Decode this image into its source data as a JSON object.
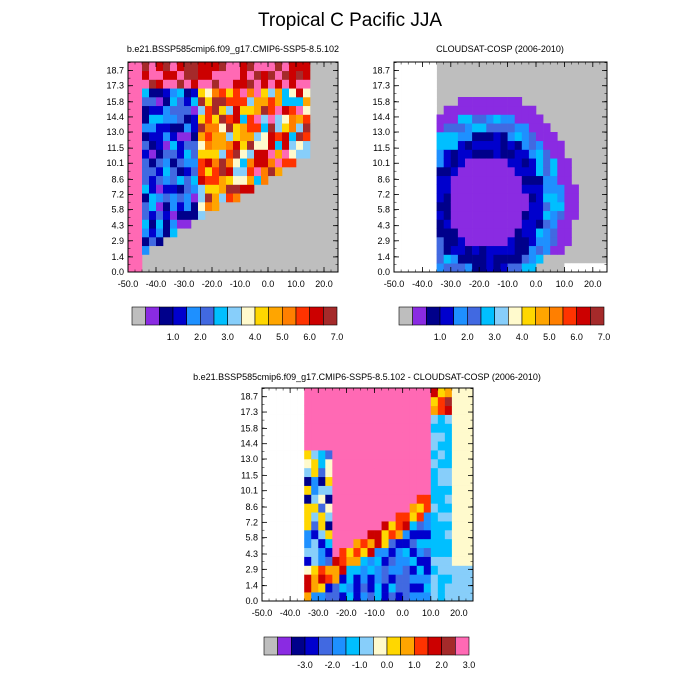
{
  "figure": {
    "title": "Tropical C Pacific JJA"
  },
  "colors": {
    "missing": "#bebebe",
    "palette_a": [
      "#8a2be2",
      "#00008b",
      "#0000cd",
      "#1e90ff",
      "#4169e1",
      "#00bfff",
      "#87cefa",
      "#fffacd",
      "#ffd700",
      "#ffa500",
      "#ff7f00",
      "#ff3300",
      "#cc0000",
      "#a52a2a",
      "#ff69b4"
    ],
    "palette_diff": [
      "#bebebe",
      "#8a2be2",
      "#00008b",
      "#0000cd",
      "#4169e1",
      "#1e90ff",
      "#00bfff",
      "#87cefa",
      "#fffacd",
      "#ffd700",
      "#ffa500",
      "#ff3300",
      "#cc0000",
      "#a52a2a",
      "#ff69b4"
    ]
  },
  "chart_data": [
    {
      "type": "heatmap",
      "title": "b.e21.BSSP585cmip6.f09_g17.CMIP6-SSP5-8.5.102",
      "xlabel": "",
      "ylabel": "",
      "xlim": [
        -50,
        25
      ],
      "ylim": [
        0,
        19.5
      ],
      "x_ticks": [
        "-50.0",
        "-40.0",
        "-30.0",
        "-20.0",
        "-10.0",
        "0.0",
        "10.0",
        "20.0"
      ],
      "y_ticks": [
        "0.0",
        "1.4",
        "2.9",
        "4.3",
        "5.8",
        "7.2",
        "8.6",
        "10.1",
        "11.5",
        "13.0",
        "14.4",
        "15.8",
        "17.3",
        "18.7"
      ],
      "colorbar_labels": [
        "1.0",
        "2.0",
        "3.0",
        "4.0",
        "5.0",
        "6.0",
        "7.0"
      ],
      "colorbar_levels": [
        0.5,
        1,
        1.5,
        2,
        2.5,
        3,
        3.5,
        4,
        4.5,
        5,
        5.5,
        6,
        6.5,
        7
      ],
      "pattern": "model"
    },
    {
      "type": "heatmap",
      "title": "CLOUDSAT-COSP (2006-2010)",
      "xlabel": "",
      "ylabel": "",
      "xlim": [
        -50,
        25
      ],
      "ylim": [
        0,
        19.5
      ],
      "x_ticks": [
        "-50.0",
        "-40.0",
        "-30.0",
        "-20.0",
        "-10.0",
        "0.0",
        "10.0",
        "20.0"
      ],
      "y_ticks": [
        "0.0",
        "1.4",
        "2.9",
        "4.3",
        "5.8",
        "7.2",
        "8.6",
        "10.1",
        "11.5",
        "13.0",
        "14.4",
        "15.8",
        "17.3",
        "18.7"
      ],
      "colorbar_labels": [
        "1.0",
        "2.0",
        "3.0",
        "4.0",
        "5.0",
        "6.0",
        "7.0"
      ],
      "colorbar_levels": [
        0.5,
        1,
        1.5,
        2,
        2.5,
        3,
        3.5,
        4,
        4.5,
        5,
        5.5,
        6,
        6.5,
        7
      ],
      "pattern": "obs"
    },
    {
      "type": "heatmap",
      "title": "b.e21.BSSP585cmip6.f09_g17.CMIP6-SSP5-8.5.102 - CLOUDSAT-COSP (2006-2010)",
      "xlabel": "",
      "ylabel": "",
      "xlim": [
        -50,
        25
      ],
      "ylim": [
        0,
        19.5
      ],
      "x_ticks": [
        "-50.0",
        "-40.0",
        "-30.0",
        "-20.0",
        "-10.0",
        "0.0",
        "10.0",
        "20.0"
      ],
      "y_ticks": [
        "0.0",
        "1.4",
        "2.9",
        "4.3",
        "5.8",
        "7.2",
        "8.6",
        "10.1",
        "11.5",
        "13.0",
        "14.4",
        "15.8",
        "17.3",
        "18.7"
      ],
      "colorbar_labels": [
        "-3.0",
        "-2.0",
        "-1.0",
        "0.0",
        "1.0",
        "2.0",
        "3.0"
      ],
      "colorbar_levels": [
        -3.5,
        -3,
        -2.5,
        -2,
        -1.5,
        -1,
        -0.5,
        0,
        0.5,
        1,
        1.5,
        2,
        2.5,
        3
      ],
      "pattern": "diff"
    }
  ]
}
